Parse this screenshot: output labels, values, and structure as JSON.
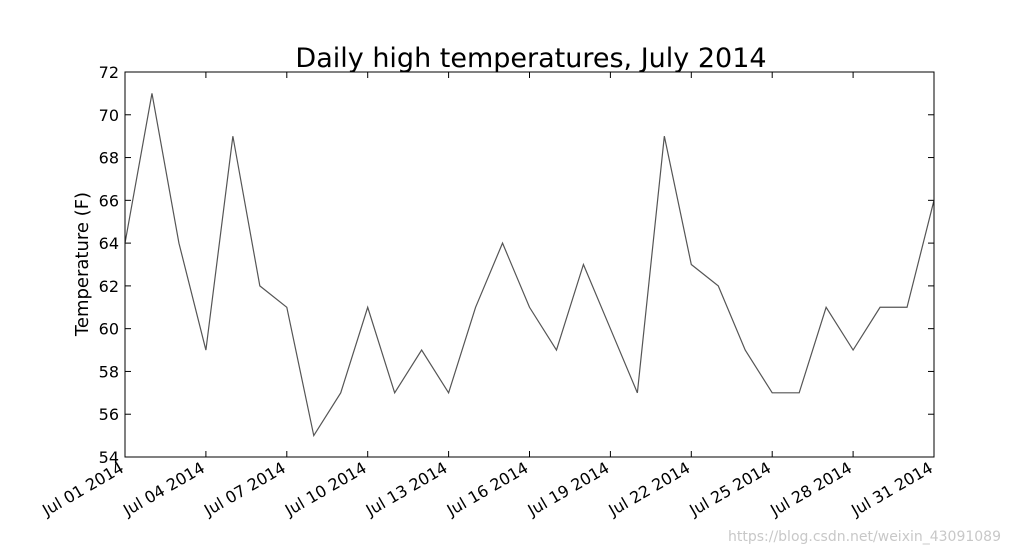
{
  "chart_data": {
    "type": "line",
    "title": "Daily high temperatures, July 2014",
    "xlabel": "",
    "ylabel": "Temperature (F)",
    "ylim": [
      54,
      72
    ],
    "yticks": [
      54,
      56,
      58,
      60,
      62,
      64,
      66,
      68,
      70,
      72
    ],
    "grid": false,
    "x": [
      "2014-07-01",
      "2014-07-02",
      "2014-07-03",
      "2014-07-04",
      "2014-07-05",
      "2014-07-06",
      "2014-07-07",
      "2014-07-08",
      "2014-07-09",
      "2014-07-10",
      "2014-07-11",
      "2014-07-12",
      "2014-07-13",
      "2014-07-14",
      "2014-07-15",
      "2014-07-16",
      "2014-07-17",
      "2014-07-18",
      "2014-07-19",
      "2014-07-20",
      "2014-07-21",
      "2014-07-22",
      "2014-07-23",
      "2014-07-24",
      "2014-07-25",
      "2014-07-26",
      "2014-07-27",
      "2014-07-28",
      "2014-07-29",
      "2014-07-30",
      "2014-07-31"
    ],
    "xtick_labels": [
      "Jul 01 2014",
      "Jul 04 2014",
      "Jul 07 2014",
      "Jul 10 2014",
      "Jul 13 2014",
      "Jul 16 2014",
      "Jul 19 2014",
      "Jul 22 2014",
      "Jul 25 2014",
      "Jul 28 2014",
      "Jul 31 2014"
    ],
    "series": [
      {
        "values": [
          64,
          71,
          64,
          59,
          69,
          62,
          61,
          55,
          57,
          61,
          57,
          59,
          57,
          61,
          64,
          61,
          59,
          63,
          60,
          57,
          69,
          63,
          62,
          59,
          57,
          57,
          61,
          59,
          61,
          61,
          66
        ],
        "color": "#555555"
      }
    ]
  },
  "watermark": "https://blog.csdn.net/weixin_43091089"
}
